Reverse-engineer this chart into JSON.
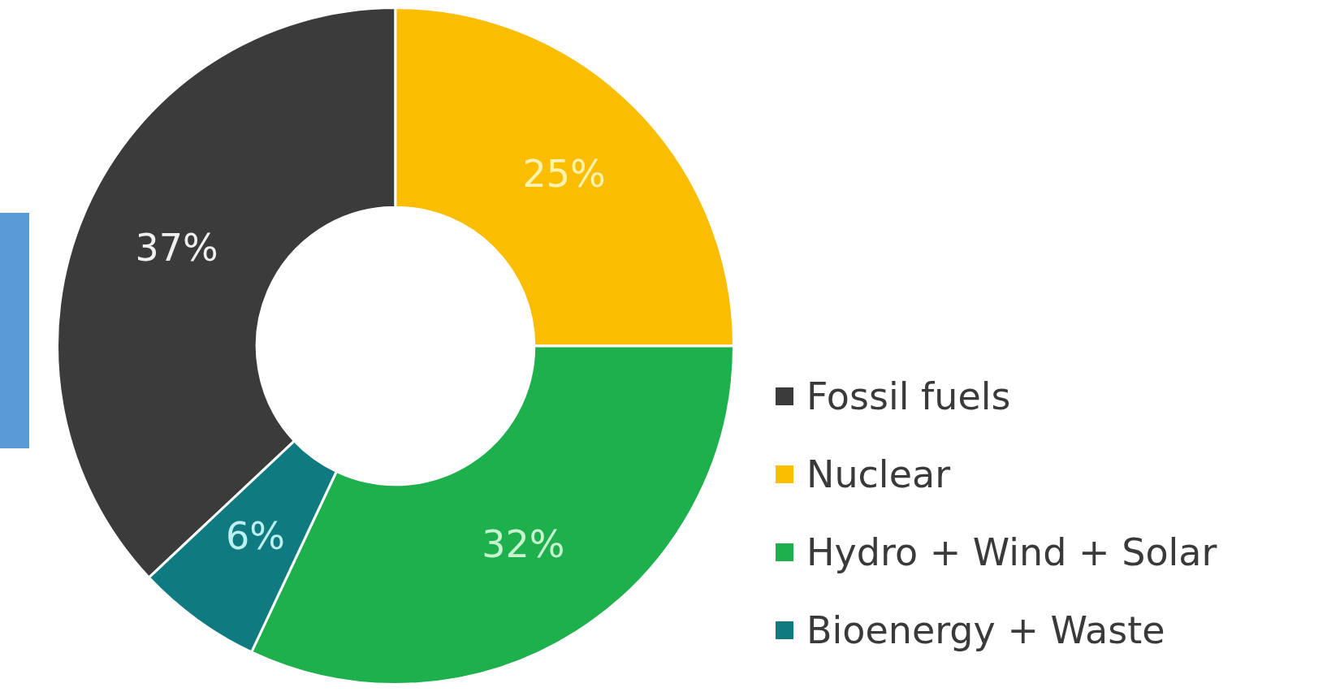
{
  "chart_data": {
    "type": "donut",
    "categories": [
      "Fossil fuels",
      "Nuclear",
      "Hydro + Wind + Solar",
      "Bioenergy + Waste"
    ],
    "values": [
      37,
      25,
      32,
      6
    ],
    "colors": [
      "#3b3b3b",
      "#fbbd00",
      "#1db04c",
      "#0f7a80"
    ],
    "value_labels": [
      "37%",
      "25%",
      "32%",
      "6%"
    ],
    "legend": "right"
  }
}
